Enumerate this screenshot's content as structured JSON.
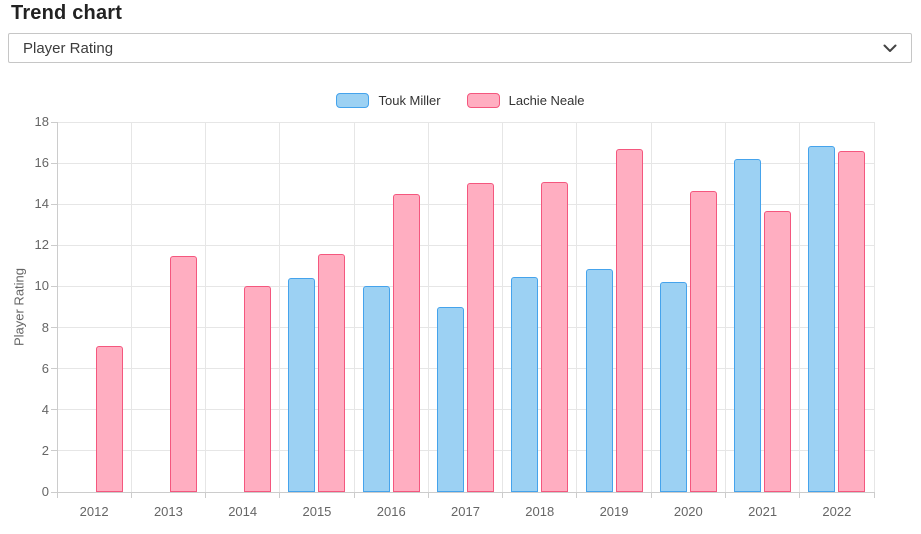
{
  "title": "Trend chart",
  "select": {
    "value": "Player Rating",
    "icon": "chevron-down-icon"
  },
  "chart_data": {
    "type": "bar",
    "title": "",
    "categories": [
      "2012",
      "2013",
      "2014",
      "2015",
      "2016",
      "2017",
      "2018",
      "2019",
      "2020",
      "2021",
      "2022"
    ],
    "series": [
      {
        "name": "Touk Miller",
        "color": "#45A3EC",
        "fill": "#9CD1F3",
        "values": [
          null,
          null,
          null,
          10.4,
          10.0,
          9.0,
          10.45,
          10.85,
          10.2,
          16.2,
          16.85
        ]
      },
      {
        "name": "Lachie Neale",
        "color": "#F4577E",
        "fill": "#FFAEC1",
        "values": [
          7.1,
          11.5,
          10.0,
          11.6,
          14.5,
          15.05,
          15.1,
          16.7,
          14.65,
          13.65,
          16.6
        ]
      }
    ],
    "xlabel": "",
    "ylabel": "Player Rating",
    "ylim": [
      0,
      18
    ],
    "yticks": [
      0,
      2,
      4,
      6,
      8,
      10,
      12,
      14,
      16,
      18
    ],
    "grid": true,
    "legend_position": "top-center",
    "grid_color": "#e6e6e6",
    "axis_color": "#cccccc",
    "tick_label_color": "#666666"
  }
}
